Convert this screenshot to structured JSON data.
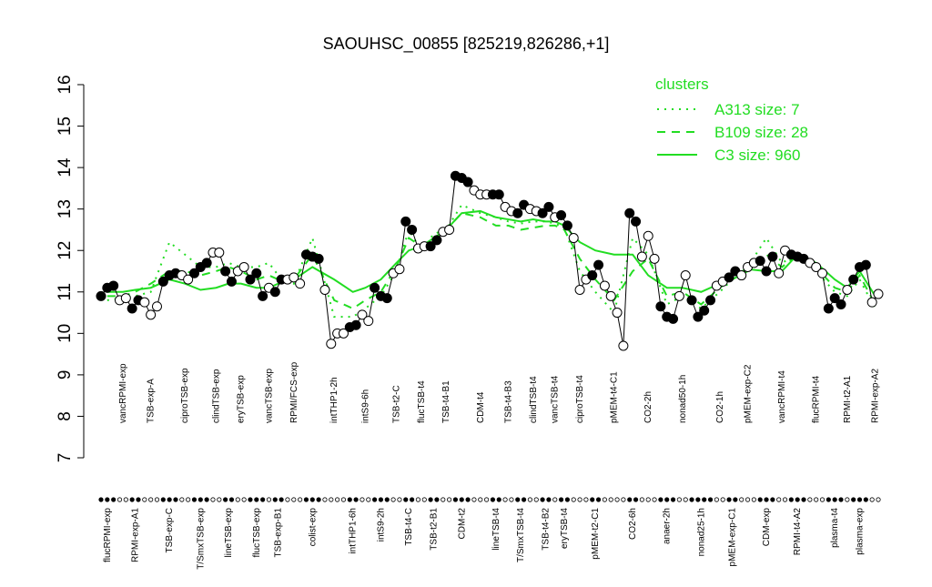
{
  "chart_data": {
    "type": "line",
    "title": "SAOUHSC_00855 [825219,826286,+1]",
    "ylim": [
      7,
      16
    ],
    "yticks": [
      7,
      8,
      9,
      10,
      11,
      12,
      13,
      14,
      15,
      16
    ],
    "groups": [
      {
        "label": "flucRPMI-exp",
        "values": [
          10.9,
          11.1,
          11.15
        ]
      },
      {
        "label": "vancRPMI-exp",
        "values": [
          10.8,
          10.85
        ]
      },
      {
        "label": "RPMI-exp-A1",
        "values": [
          10.6,
          10.8
        ]
      },
      {
        "label": "TSB-exp-A",
        "values": [
          10.75,
          10.45,
          10.65
        ]
      },
      {
        "label": "TSB-exp-C",
        "values": [
          11.25,
          11.4,
          11.45
        ]
      },
      {
        "label": "ciproTSB-exp",
        "values": [
          11.4,
          11.3
        ]
      },
      {
        "label": "T/SmxTSB-exp",
        "values": [
          11.45,
          11.6,
          11.7
        ]
      },
      {
        "label": "clindTSB-exp",
        "values": [
          11.95,
          11.95
        ]
      },
      {
        "label": "lineTSB-exp",
        "values": [
          11.5,
          11.25
        ]
      },
      {
        "label": "eryTSB-exp",
        "values": [
          11.5,
          11.6
        ]
      },
      {
        "label": "flucTSB-exp",
        "values": [
          11.3,
          11.45,
          10.9
        ]
      },
      {
        "label": "vancTSB-exp",
        "values": [
          11.1
        ]
      },
      {
        "label": "TSB-exp-B1",
        "values": [
          11.0,
          11.3
        ]
      },
      {
        "label": "RPMI/FCS-exp",
        "values": [
          11.3,
          11.35,
          11.2
        ]
      },
      {
        "label": "colist-exp",
        "values": [
          11.9,
          11.85,
          11.8
        ]
      },
      {
        "label": "intTHP1-2h",
        "values": [
          11.05,
          9.75,
          10.0,
          10.0
        ]
      },
      {
        "label": "intTHP1-6h",
        "values": [
          10.15,
          10.2
        ]
      },
      {
        "label": "intS9-6h",
        "values": [
          10.45,
          10.3
        ]
      },
      {
        "label": "intS9-2h",
        "values": [
          11.1,
          10.9,
          10.85
        ]
      },
      {
        "label": "TSB-t2-C",
        "values": [
          11.45,
          11.55
        ]
      },
      {
        "label": "TSB-t4-C",
        "values": [
          12.7,
          12.5
        ]
      },
      {
        "label": "flucTSB-t4",
        "values": [
          12.05,
          12.1
        ]
      },
      {
        "label": "TSB-t2-B1",
        "values": [
          12.1,
          12.25
        ]
      },
      {
        "label": "TSB-t4-B1",
        "values": [
          12.45,
          12.5
        ]
      },
      {
        "label": "CDM-t2",
        "values": [
          13.8,
          13.75,
          13.65
        ]
      },
      {
        "label": "CDM-t4",
        "values": [
          13.45,
          13.35,
          13.35
        ]
      },
      {
        "label": "lineTSB-t4",
        "values": [
          13.35,
          13.35
        ]
      },
      {
        "label": "TSB-t4-B3",
        "values": [
          13.05,
          12.95
        ]
      },
      {
        "label": "T/SmxTSB-t4",
        "values": [
          12.9,
          13.1
        ]
      },
      {
        "label": "clindTSB-t4",
        "values": [
          13.0,
          12.95
        ]
      },
      {
        "label": "TSB-t4-B2",
        "values": [
          12.9,
          13.05
        ]
      },
      {
        "label": "vancTSB-t4",
        "values": [
          12.8
        ]
      },
      {
        "label": "eryTSB-t4",
        "values": [
          12.85,
          12.6
        ]
      },
      {
        "label": "ciproTSB-t4",
        "values": [
          12.3,
          11.05,
          11.3
        ]
      },
      {
        "label": "pMEM-t2-C1",
        "values": [
          11.4,
          11.65
        ]
      },
      {
        "label": "pMEM-t4-C1",
        "values": [
          11.15,
          10.9,
          10.5,
          9.7
        ]
      },
      {
        "label": "CO2-6h",
        "values": [
          12.9,
          12.7
        ]
      },
      {
        "label": "CO2-2h",
        "values": [
          11.85,
          12.35,
          11.8
        ]
      },
      {
        "label": "anaer-2h",
        "values": [
          10.65,
          10.4,
          10.35
        ]
      },
      {
        "label": "nonad50-1h",
        "values": [
          10.9,
          11.4
        ]
      },
      {
        "label": "nonad25-1h",
        "values": [
          10.8,
          10.4,
          10.55,
          10.8
        ]
      },
      {
        "label": "CO2-1h",
        "values": [
          11.15,
          11.25
        ]
      },
      {
        "label": "pMEM-exp-C1",
        "values": [
          11.35,
          11.5
        ]
      },
      {
        "label": "pMEM-exp-C2",
        "values": [
          11.4,
          11.6,
          11.7
        ]
      },
      {
        "label": "CDM-exp",
        "values": [
          11.75,
          11.5,
          11.85
        ]
      },
      {
        "label": "vancRPMI-t4",
        "values": [
          11.45,
          12.0
        ]
      },
      {
        "label": "RPMI-t4-A2",
        "values": [
          11.9,
          11.85,
          11.8
        ]
      },
      {
        "label": "flucRPMI-t4",
        "values": [
          11.7,
          11.6,
          11.45
        ]
      },
      {
        "label": "plasma-t4",
        "values": [
          10.6,
          10.85,
          10.7
        ]
      },
      {
        "label": "RPMI-t2-A1",
        "values": [
          11.05
        ]
      },
      {
        "label": "plasma-exp",
        "values": [
          11.3,
          11.6,
          11.65
        ]
      },
      {
        "label": "RPMI-exp-A2",
        "values": [
          10.75,
          10.95
        ]
      }
    ],
    "legend_title": "clusters",
    "series": [
      {
        "name": "A313 size: 7",
        "color": "#22dd22",
        "dash": "dotted",
        "values": [
          10.8,
          10.85,
          10.9,
          11.0,
          12.2,
          11.9,
          11.6,
          11.6,
          11.7,
          11.6,
          11.6,
          11.7,
          11.4,
          11.2,
          12.3,
          10.4,
          10.4,
          10.6,
          10.9,
          11.5,
          12.5,
          12.0,
          12.4,
          12.5,
          13.1,
          12.9,
          12.8,
          12.7,
          12.65,
          12.7,
          12.7,
          12.65,
          12.55,
          11.5,
          11.0,
          10.5,
          12.3,
          11.9,
          10.7,
          10.9,
          10.6,
          11.0,
          11.3,
          11.6,
          12.3,
          11.7,
          11.9,
          11.5,
          11.0,
          10.9,
          11.3,
          10.6
        ]
      },
      {
        "name": "B109 size: 28",
        "color": "#22dd22",
        "dash": "dashed",
        "values": [
          10.9,
          10.9,
          11.0,
          11.2,
          11.5,
          11.5,
          11.4,
          11.5,
          11.6,
          11.5,
          11.3,
          11.4,
          11.3,
          11.3,
          11.9,
          10.8,
          10.6,
          10.8,
          11.0,
          11.6,
          12.3,
          12.1,
          12.3,
          12.5,
          12.9,
          12.8,
          12.6,
          12.6,
          12.5,
          12.55,
          12.6,
          12.6,
          12.5,
          11.8,
          11.3,
          10.8,
          11.5,
          11.8,
          10.9,
          11.0,
          10.7,
          11.1,
          11.3,
          11.5,
          11.9,
          11.6,
          11.9,
          11.6,
          11.1,
          11.0,
          11.4,
          10.7
        ]
      },
      {
        "name": "C3 size: 960",
        "color": "#22dd22",
        "dash": "solid",
        "values": [
          11.0,
          11.0,
          11.05,
          11.1,
          11.3,
          11.2,
          11.05,
          11.1,
          11.2,
          11.2,
          11.1,
          11.1,
          11.2,
          11.3,
          11.6,
          11.3,
          11.0,
          11.1,
          11.3,
          11.7,
          12.0,
          12.1,
          12.3,
          12.5,
          12.9,
          12.95,
          12.8,
          12.75,
          12.7,
          12.75,
          12.7,
          12.7,
          12.6,
          12.2,
          12.0,
          11.9,
          11.9,
          11.4,
          11.1,
          11.1,
          11.0,
          11.2,
          11.4,
          11.55,
          11.5,
          11.5,
          11.9,
          11.7,
          11.3,
          11.1,
          11.5,
          10.9
        ]
      }
    ]
  }
}
